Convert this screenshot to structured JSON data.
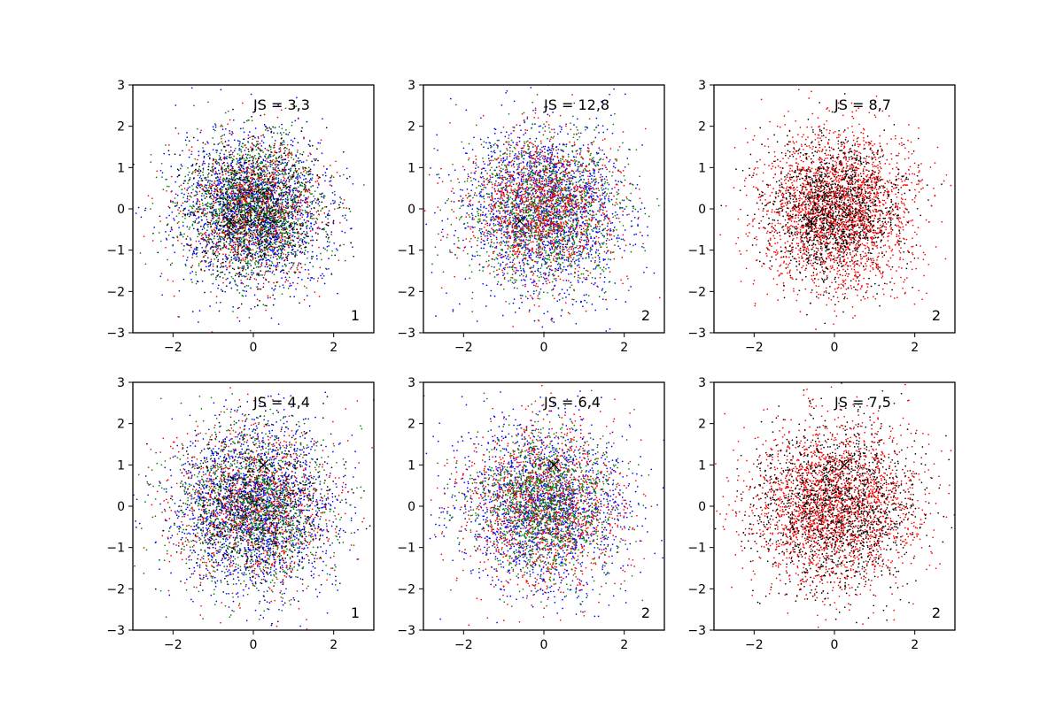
{
  "chart_data": [
    {
      "type": "scatter",
      "xlim": [
        -3,
        3
      ],
      "ylim": [
        -3,
        3
      ],
      "xticks": [
        -2,
        0,
        2
      ],
      "yticks": [
        -3,
        -2,
        -1,
        0,
        1,
        2,
        3
      ],
      "annotation": "JS = 3,3",
      "panel_label": "1",
      "marker": {
        "x": -0.6,
        "y": -0.3,
        "symbol": "x",
        "color": "#000000"
      },
      "series": [
        {
          "color": "#0000ff",
          "distribution": {
            "mean": [
              0,
              0
            ],
            "std": [
              0.92,
              0.92
            ],
            "count": 1700
          }
        },
        {
          "color": "#008000",
          "distribution": {
            "mean": [
              0,
              0
            ],
            "std": [
              0.85,
              0.85
            ],
            "count": 1500
          }
        },
        {
          "color": "#ff0000",
          "distribution": {
            "mean": [
              0,
              0
            ],
            "std": [
              0.88,
              0.88
            ],
            "count": 900
          }
        },
        {
          "color": "#000000",
          "distribution": {
            "mean": [
              0,
              0
            ],
            "std": [
              0.88,
              0.88
            ],
            "count": 900
          }
        }
      ]
    },
    {
      "type": "scatter",
      "xlim": [
        -3,
        3
      ],
      "ylim": [
        -3,
        3
      ],
      "xticks": [
        -2,
        0,
        2
      ],
      "yticks": [
        -3,
        -2,
        -1,
        0,
        1,
        2,
        3
      ],
      "annotation": "JS = 12,8",
      "panel_label": "2",
      "marker": {
        "x": -0.6,
        "y": -0.3,
        "symbol": "x",
        "color": "#000000"
      },
      "series": [
        {
          "color": "#0000ff",
          "distribution": {
            "mean": [
              0,
              0
            ],
            "std": [
              1.0,
              1.0
            ],
            "count": 1800
          }
        },
        {
          "color": "#008000",
          "distribution": {
            "mean": [
              0,
              0
            ],
            "std": [
              0.95,
              0.95
            ],
            "count": 1400
          }
        },
        {
          "color": "#ff0000",
          "distribution": {
            "mean": [
              0,
              0
            ],
            "std": [
              0.92,
              0.92
            ],
            "count": 1300
          }
        }
      ]
    },
    {
      "type": "scatter",
      "xlim": [
        -3,
        3
      ],
      "ylim": [
        -3,
        3
      ],
      "xticks": [
        -2,
        0,
        2
      ],
      "yticks": [
        -3,
        -2,
        -1,
        0,
        1,
        2,
        3
      ],
      "annotation": "JS = 8,7",
      "panel_label": "2",
      "marker": {
        "x": -0.6,
        "y": -0.3,
        "symbol": "x",
        "color": "#000000"
      },
      "series": [
        {
          "color": "#ff0000",
          "distribution": {
            "mean": [
              0,
              0
            ],
            "std": [
              0.95,
              0.95
            ],
            "count": 2400
          }
        },
        {
          "color": "#000000",
          "distribution": {
            "mean": [
              0,
              0
            ],
            "std": [
              0.85,
              0.85
            ],
            "count": 1400
          }
        }
      ]
    },
    {
      "type": "scatter",
      "xlim": [
        -3,
        3
      ],
      "ylim": [
        -3,
        3
      ],
      "xticks": [
        -2,
        0,
        2
      ],
      "yticks": [
        -3,
        -2,
        -1,
        0,
        1,
        2,
        3
      ],
      "annotation": "JS = 4,4",
      "panel_label": "1",
      "marker": {
        "x": 0.25,
        "y": 1.0,
        "symbol": "x",
        "color": "#000000"
      },
      "series": [
        {
          "color": "#0000ff",
          "distribution": {
            "mean": [
              0,
              0
            ],
            "std": [
              1.0,
              1.0
            ],
            "count": 1800
          }
        },
        {
          "color": "#008000",
          "distribution": {
            "mean": [
              0,
              0
            ],
            "std": [
              0.95,
              0.95
            ],
            "count": 1300
          }
        },
        {
          "color": "#ff0000",
          "distribution": {
            "mean": [
              0,
              0
            ],
            "std": [
              1.0,
              1.0
            ],
            "count": 1000
          }
        },
        {
          "color": "#000000",
          "distribution": {
            "mean": [
              0,
              0
            ],
            "std": [
              0.95,
              0.95
            ],
            "count": 700
          }
        }
      ]
    },
    {
      "type": "scatter",
      "xlim": [
        -3,
        3
      ],
      "ylim": [
        -3,
        3
      ],
      "xticks": [
        -2,
        0,
        2
      ],
      "yticks": [
        -3,
        -2,
        -1,
        0,
        1,
        2,
        3
      ],
      "annotation": "JS = 6,4",
      "panel_label": "2",
      "marker": {
        "x": 0.25,
        "y": 1.0,
        "symbol": "x",
        "color": "#000000"
      },
      "series": [
        {
          "color": "#0000ff",
          "distribution": {
            "mean": [
              0,
              0
            ],
            "std": [
              1.02,
              1.02
            ],
            "count": 1700
          }
        },
        {
          "color": "#ff0000",
          "distribution": {
            "mean": [
              0,
              0
            ],
            "std": [
              0.98,
              0.98
            ],
            "count": 1400
          }
        },
        {
          "color": "#008000",
          "distribution": {
            "mean": [
              0,
              0
            ],
            "std": [
              0.9,
              0.9
            ],
            "count": 1300
          }
        }
      ]
    },
    {
      "type": "scatter",
      "xlim": [
        -3,
        3
      ],
      "ylim": [
        -3,
        3
      ],
      "xticks": [
        -2,
        0,
        2
      ],
      "yticks": [
        -3,
        -2,
        -1,
        0,
        1,
        2,
        3
      ],
      "annotation": "JS = 7,5",
      "panel_label": "2",
      "marker": {
        "x": 0.25,
        "y": 1.0,
        "symbol": "x",
        "color": "#000000"
      },
      "series": [
        {
          "color": "#ff0000",
          "distribution": {
            "mean": [
              0,
              0
            ],
            "std": [
              1.0,
              1.0
            ],
            "count": 2300
          }
        },
        {
          "color": "#000000",
          "distribution": {
            "mean": [
              0,
              0
            ],
            "std": [
              1.0,
              1.0
            ],
            "count": 1500
          }
        }
      ]
    }
  ]
}
